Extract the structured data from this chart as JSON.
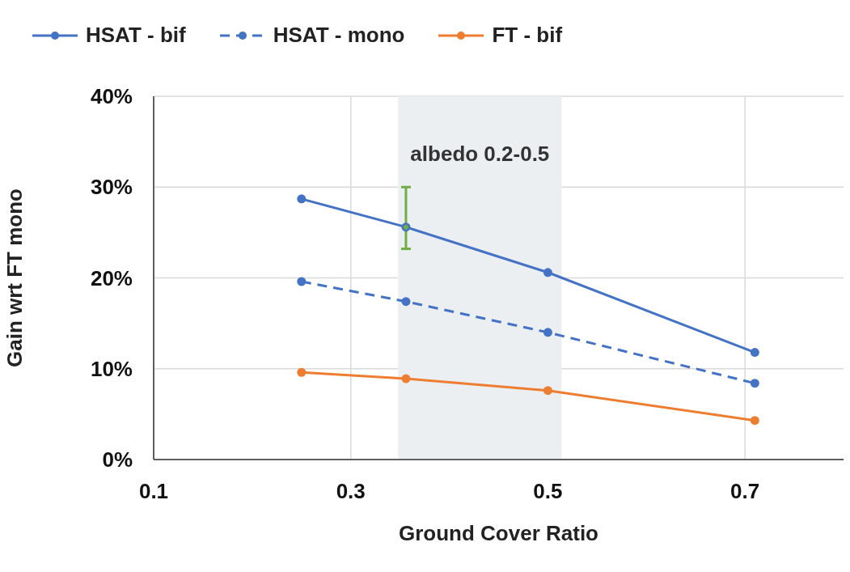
{
  "chart_data": {
    "type": "line",
    "xlabel": "Ground Cover Ratio",
    "ylabel": "Gain wrt FT mono",
    "xlim": [
      0.1,
      0.8
    ],
    "xticks": [
      0.1,
      0.3,
      0.5,
      0.7
    ],
    "ylim": [
      0,
      40
    ],
    "yticks": [
      {
        "value": 0,
        "label": "0%"
      },
      {
        "value": 10,
        "label": "10%"
      },
      {
        "value": 20,
        "label": "20%"
      },
      {
        "value": 30,
        "label": "30%"
      },
      {
        "value": 40,
        "label": "40%"
      }
    ],
    "x": [
      0.25,
      0.356,
      0.5,
      0.71
    ],
    "series": [
      {
        "name": "HSAT - bif",
        "color": "#4472c4",
        "values": [
          28.7,
          25.6,
          20.6,
          11.8
        ],
        "line_style": "solid"
      },
      {
        "name": "HSAT - mono",
        "color": "#4472c4",
        "values": [
          19.6,
          17.4,
          14.0,
          8.4
        ],
        "line_style": "dashed"
      },
      {
        "name": "FT - bif",
        "color": "#ed7d31",
        "values": [
          9.6,
          8.9,
          7.6,
          4.3
        ],
        "line_style": "solid"
      },
      {
        "color": "#70ad47",
        "values": [
          null,
          25.6,
          null,
          null
        ],
        "errors": [
          null,
          [
            23.2,
            30.0
          ],
          null,
          null
        ]
      }
    ],
    "bands": [
      {
        "axis": "x",
        "from": 0.348,
        "to": 0.514,
        "label": "albedo 0.2-0.5",
        "color": "#eceff2"
      }
    ],
    "grid": true,
    "legend": "top",
    "marker": "circle"
  }
}
